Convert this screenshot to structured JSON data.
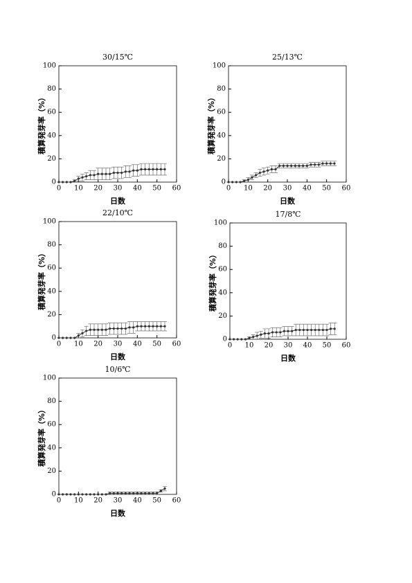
{
  "chart_data": [
    {
      "type": "line",
      "title": "30/15℃",
      "xlabel": "日数",
      "ylabel": "積算発芽率（%）",
      "color": "#333333",
      "xlim": [
        0,
        60
      ],
      "xticks": [
        0,
        10,
        20,
        30,
        40,
        50,
        60
      ],
      "ylim": [
        0,
        100
      ],
      "yticks": [
        0,
        20,
        40,
        60,
        80,
        100
      ],
      "x": [
        0,
        2,
        4,
        6,
        8,
        10,
        12,
        14,
        16,
        18,
        20,
        22,
        24,
        26,
        28,
        30,
        32,
        34,
        36,
        38,
        40,
        42,
        44,
        46,
        48,
        50,
        52,
        54
      ],
      "values": [
        0,
        0,
        0,
        0,
        1,
        3,
        4,
        5,
        6,
        6,
        7,
        7,
        7,
        7,
        8,
        8,
        8,
        9,
        9,
        10,
        10,
        11,
        11,
        11,
        11,
        11,
        11,
        11
      ],
      "errors": [
        0,
        0,
        0,
        0,
        1,
        2,
        3,
        3,
        4,
        4,
        5,
        5,
        5,
        5,
        5,
        5,
        5,
        5,
        5,
        5,
        5,
        5,
        5,
        5,
        5,
        5,
        5,
        5
      ]
    },
    {
      "type": "line",
      "title": "25/13℃",
      "xlabel": "日数",
      "ylabel": "積算発芽率（%）",
      "color": "#333333",
      "xlim": [
        0,
        60
      ],
      "xticks": [
        0,
        10,
        20,
        30,
        40,
        50,
        60
      ],
      "ylim": [
        0,
        100
      ],
      "yticks": [
        0,
        20,
        40,
        60,
        80,
        100
      ],
      "x": [
        0,
        2,
        4,
        6,
        8,
        10,
        12,
        14,
        16,
        18,
        20,
        22,
        24,
        26,
        28,
        30,
        32,
        34,
        36,
        38,
        40,
        42,
        44,
        46,
        48,
        50,
        52,
        54
      ],
      "values": [
        0,
        0,
        0,
        0,
        1,
        2,
        4,
        6,
        8,
        9,
        10,
        11,
        11,
        14,
        14,
        14,
        14,
        14,
        14,
        14,
        14,
        15,
        15,
        15,
        16,
        16,
        16,
        16
      ],
      "errors": [
        0,
        0,
        0,
        0,
        1,
        2,
        2,
        2,
        3,
        3,
        3,
        3,
        3,
        2,
        2,
        2,
        2,
        2,
        2,
        2,
        2,
        2,
        2,
        2,
        2,
        2,
        2,
        2
      ]
    },
    {
      "type": "line",
      "title": "22/10℃",
      "xlabel": "日数",
      "ylabel": "積算発芽率（%）",
      "color": "#333333",
      "xlim": [
        0,
        60
      ],
      "xticks": [
        0,
        10,
        20,
        30,
        40,
        50,
        60
      ],
      "ylim": [
        0,
        100
      ],
      "yticks": [
        0,
        20,
        40,
        60,
        80,
        100
      ],
      "x": [
        0,
        2,
        4,
        6,
        8,
        10,
        12,
        14,
        16,
        18,
        20,
        22,
        24,
        26,
        28,
        30,
        32,
        34,
        36,
        38,
        40,
        42,
        44,
        46,
        48,
        50,
        52,
        54
      ],
      "values": [
        0,
        0,
        0,
        0,
        0,
        2,
        4,
        6,
        7,
        7,
        7,
        7,
        7,
        8,
        8,
        8,
        8,
        8,
        9,
        9,
        10,
        10,
        10,
        10,
        10,
        10,
        10,
        10
      ],
      "errors": [
        0,
        0,
        0,
        0,
        0,
        2,
        3,
        4,
        5,
        5,
        5,
        5,
        5,
        5,
        5,
        5,
        5,
        5,
        5,
        5,
        4,
        4,
        4,
        4,
        4,
        4,
        4,
        4
      ]
    },
    {
      "type": "line",
      "title": "17/8℃",
      "xlabel": "日数",
      "ylabel": "積算発芽率（%）",
      "color": "#333333",
      "xlim": [
        0,
        60
      ],
      "xticks": [
        0,
        10,
        20,
        30,
        40,
        50,
        60
      ],
      "ylim": [
        0,
        100
      ],
      "yticks": [
        0,
        20,
        40,
        60,
        80,
        100
      ],
      "x": [
        0,
        2,
        4,
        6,
        8,
        10,
        12,
        14,
        16,
        18,
        20,
        22,
        24,
        26,
        28,
        30,
        32,
        34,
        36,
        38,
        40,
        42,
        44,
        46,
        48,
        50,
        52,
        54
      ],
      "values": [
        0,
        0,
        0,
        0,
        0,
        1,
        2,
        3,
        4,
        5,
        5,
        6,
        6,
        6,
        7,
        7,
        7,
        8,
        8,
        8,
        8,
        8,
        8,
        8,
        8,
        8,
        9,
        9
      ],
      "errors": [
        0,
        0,
        0,
        0,
        0,
        1,
        2,
        3,
        3,
        4,
        4,
        4,
        4,
        4,
        4,
        4,
        4,
        5,
        5,
        5,
        5,
        5,
        5,
        5,
        5,
        5,
        5,
        5
      ]
    },
    {
      "type": "line",
      "title": "10/6℃",
      "xlabel": "日数",
      "ylabel": "積算発芽率（%）",
      "color": "#333333",
      "xlim": [
        0,
        60
      ],
      "xticks": [
        0,
        10,
        20,
        30,
        40,
        50,
        60
      ],
      "ylim": [
        0,
        100
      ],
      "yticks": [
        0,
        20,
        40,
        60,
        80,
        100
      ],
      "x": [
        0,
        2,
        4,
        6,
        8,
        10,
        12,
        14,
        16,
        18,
        20,
        22,
        24,
        26,
        28,
        30,
        32,
        34,
        36,
        38,
        40,
        42,
        44,
        46,
        48,
        50,
        52,
        54
      ],
      "values": [
        0,
        0,
        0,
        0,
        0,
        0,
        0,
        0,
        0,
        0,
        0,
        0,
        0,
        1,
        1,
        1,
        1,
        1,
        1,
        1,
        1,
        1,
        1,
        1,
        1,
        1,
        3,
        5
      ],
      "errors": [
        0,
        0,
        0,
        0,
        0,
        0,
        0,
        0,
        0,
        0,
        0,
        0,
        0,
        1,
        1,
        1,
        1,
        1,
        1,
        1,
        1,
        1,
        1,
        1,
        1,
        1,
        1,
        2
      ]
    }
  ]
}
